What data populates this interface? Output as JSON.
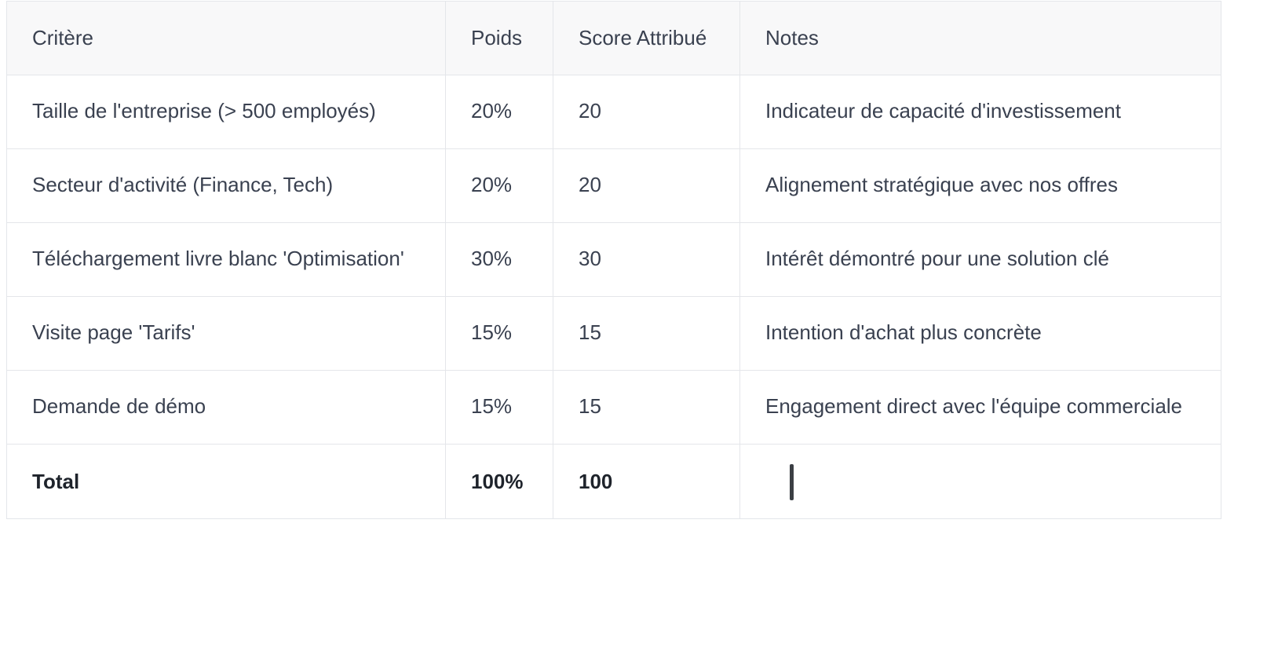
{
  "table": {
    "headers": [
      "Critère",
      "Poids",
      "Score Attribué",
      "Notes"
    ],
    "rows": [
      [
        "Taille de l'entreprise (> 500 employés)",
        "20%",
        "20",
        "Indicateur de capacité d'investissement"
      ],
      [
        "Secteur d'activité (Finance, Tech)",
        "20%",
        "20",
        "Alignement stratégique avec nos offres"
      ],
      [
        "Téléchargement livre blanc 'Optimisation'",
        "30%",
        "30",
        "Intérêt démontré pour une solution clé"
      ],
      [
        "Visite page 'Tarifs'",
        "15%",
        "15",
        "Intention d'achat plus concrète"
      ],
      [
        "Demande de démo",
        "15%",
        "15",
        "Engagement direct avec l'équipe commerciale"
      ]
    ],
    "total": {
      "label": "Total",
      "weight": "100%",
      "score": "100",
      "notes": ""
    }
  },
  "colors": {
    "header_bg": "#f8f8f9",
    "border": "#e4e6ea",
    "text": "#3a4150",
    "total_text": "#1e232b"
  }
}
